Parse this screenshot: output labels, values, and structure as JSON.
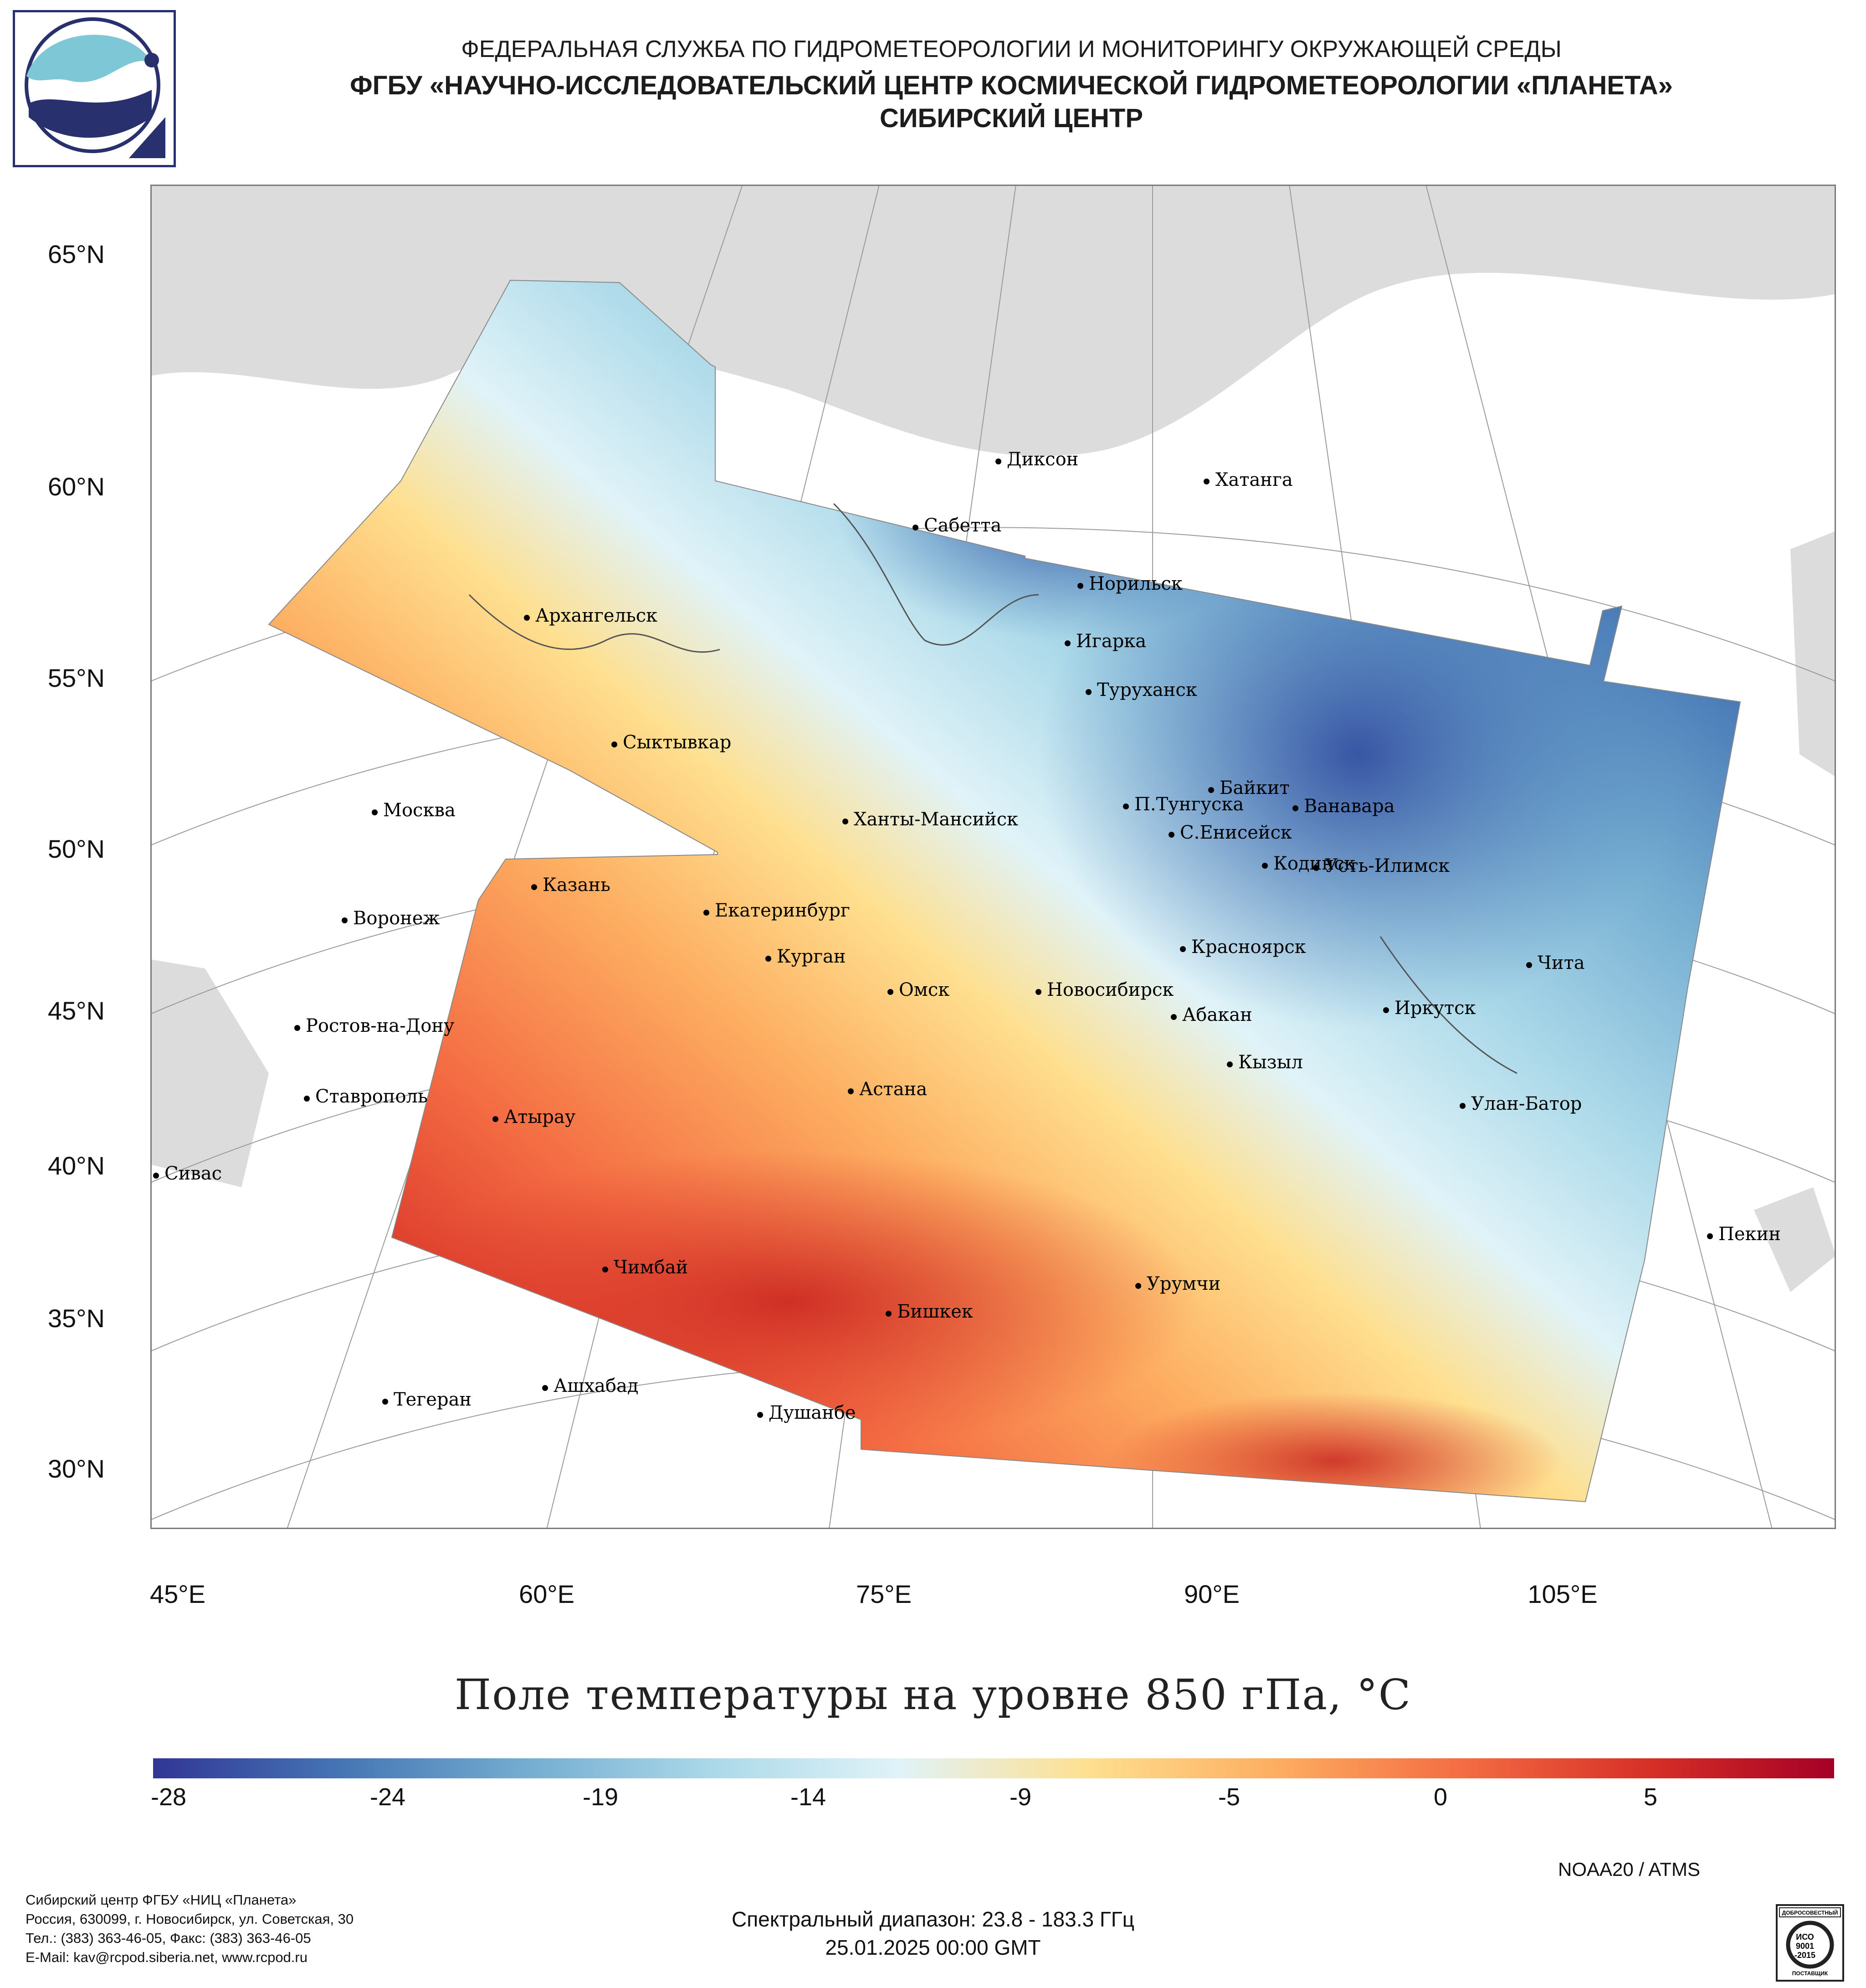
{
  "header": {
    "line1": "ФЕДЕРАЛЬНАЯ СЛУЖБА ПО ГИДРОМЕТЕОРОЛОГИИ И МОНИТОРИНГУ ОКРУЖАЮЩЕЙ СРЕДЫ",
    "line2": "ФГБУ «НАУЧНО-ИССЛЕДОВАТЕЛЬСКИЙ ЦЕНТР КОСМИЧЕСКОЙ ГИДРОМЕТЕОРОЛОГИИ «ПЛАНЕТА»",
    "line3": "СИБИРСКИЙ ЦЕНТР"
  },
  "map": {
    "lat_labels": [
      "65°N",
      "60°N",
      "55°N",
      "50°N",
      "45°N",
      "40°N",
      "35°N",
      "30°N"
    ],
    "lon_labels": [
      "45°E",
      "60°E",
      "75°E",
      "90°E",
      "105°E"
    ],
    "cities": [
      "Диксон",
      "Хатанга",
      "Сабетта",
      "Норильск",
      "Архангельск",
      "Игарка",
      "Туруханск",
      "Сыктывкар",
      "Байкит",
      "Москва",
      "Ханты-Мансийск",
      "П.Тунгуска",
      "Ванавара",
      "С.Енисейск",
      "Казань",
      "Кодинск",
      "Усть-Илимск",
      "Екатеринбург",
      "Воронеж",
      "Красноярск",
      "Курган",
      "Чита",
      "Омск",
      "Новосибирск",
      "Иркутск",
      "Абакан",
      "Ростов-на-Дону",
      "Кызыл",
      "Астана",
      "Ставрополь",
      "Улан-Батор",
      "Атырау",
      "Сивас",
      "Пекин",
      "Чимбай",
      "Урумчи",
      "Бишкек",
      "Ашхабад",
      "Тегеран",
      "Душанбе"
    ]
  },
  "colorbar": {
    "title": "Поле температуры на уровне 850 гПа, °C",
    "ticks": [
      "-28",
      "-24",
      "-19",
      "-14",
      "-9",
      "-5",
      "0",
      "5"
    ],
    "colors": [
      "#313695",
      "#4575b4",
      "#74add1",
      "#abd9e9",
      "#e0f3f8",
      "#fee090",
      "#fdae61",
      "#f46d43",
      "#d73027",
      "#a50026"
    ]
  },
  "footer": {
    "satellite": "NOAA20 / ATMS",
    "org_lines": [
      "Сибирский центр ФГБУ «НИЦ «Планета»",
      "Россия, 630099, г. Новосибирск, ул. Советская, 30",
      "Тел.: (383) 363-46-05, Факс: (383) 363-46-05",
      "E-Mail: kav@rcpod.siberia.net, www.rcpod.ru"
    ],
    "spectral": "Спектральный диапазон: 23.8 - 183.3 ГГц",
    "datetime": "25.01.2025 00:00 GMT",
    "iso_top": "ДОБРОСОВЕСТНЫЙ",
    "iso_mid1": "ИСО",
    "iso_mid2": "9001",
    "iso_mid3": "-2015",
    "iso_bottom": "ПОСТАВЩИК"
  }
}
